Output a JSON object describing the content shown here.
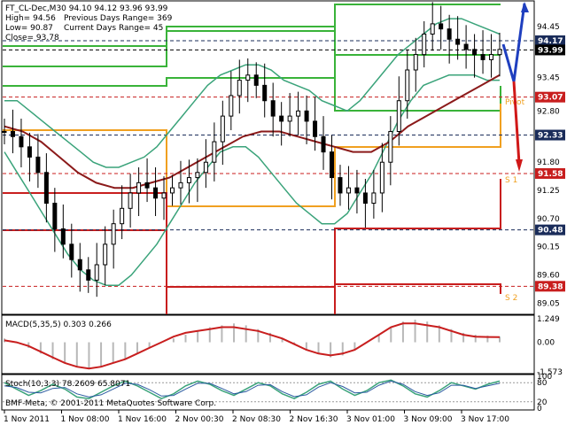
{
  "chart_data": [
    {
      "type": "candlestick",
      "info": {
        "symbol_line": "FT_CL-Dec,M30  94.10 94.12 93.96 93.99",
        "high": "High= 94.56",
        "low": "Low= 90.87",
        "close": "Close= 93.78",
        "prev_range": "Previous Days Range= 369",
        "curr_range": "Current Days Range= 45"
      },
      "ylim": [
        88.85,
        94.93
      ],
      "y_ticks": [
        94.45,
        93.45,
        92.8,
        92.35,
        91.8,
        91.25,
        90.7,
        90.15,
        89.6,
        89.05
      ],
      "price_tags": [
        {
          "label": "94.17",
          "value": 94.17,
          "color": "#1a2c5a"
        },
        {
          "label": "93.99",
          "value": 93.99,
          "color": "#000000"
        },
        {
          "label": "93.07",
          "value": 93.07,
          "color": "#c81e1e"
        },
        {
          "label": "92.33",
          "value": 92.33,
          "color": "#1a2c5a"
        },
        {
          "label": "91.58",
          "value": 91.58,
          "color": "#c81e1e"
        },
        {
          "label": "90.48",
          "value": 90.48,
          "color": "#1a2c5a"
        },
        {
          "label": "89.38",
          "value": 89.38,
          "color": "#c81e1e"
        }
      ],
      "pivot_labels": [
        "Pivot",
        "S 1",
        "S 2"
      ],
      "close_series": [
        92.4,
        92.3,
        92.1,
        91.9,
        91.6,
        91.0,
        90.5,
        90.2,
        89.9,
        89.7,
        89.5,
        89.8,
        90.2,
        90.6,
        90.9,
        91.2,
        91.4,
        91.3,
        91.1,
        91.2,
        91.3,
        91.4,
        91.5,
        91.6,
        91.8,
        92.2,
        92.7,
        93.1,
        93.4,
        93.5,
        93.3,
        93.0,
        92.7,
        92.6,
        92.7,
        92.8,
        92.6,
        92.3,
        92.0,
        91.5,
        91.2,
        91.3,
        91.2,
        91.0,
        91.2,
        91.8,
        92.4,
        93.0,
        93.6,
        93.9,
        94.3,
        94.5,
        94.4,
        94.2,
        94.1,
        94.0,
        93.9,
        93.8,
        93.9,
        94.0
      ],
      "bands_upper": [
        93.0,
        93.0,
        92.8,
        92.6,
        92.4,
        92.2,
        92.0,
        91.8,
        91.7,
        91.7,
        91.8,
        91.9,
        92.1,
        92.4,
        92.7,
        93.0,
        93.3,
        93.5,
        93.6,
        93.7,
        93.7,
        93.6,
        93.4,
        93.3,
        93.2,
        93.0,
        92.9,
        92.8,
        93.0,
        93.3,
        93.6,
        93.9,
        94.1,
        94.3,
        94.5,
        94.6,
        94.6,
        94.5,
        94.4,
        94.3
      ],
      "bands_lower": [
        92.0,
        91.6,
        91.2,
        90.8,
        90.4,
        90.0,
        89.7,
        89.5,
        89.4,
        89.4,
        89.6,
        89.9,
        90.2,
        90.6,
        91.0,
        91.4,
        91.7,
        92.0,
        92.1,
        92.1,
        91.9,
        91.6,
        91.3,
        91.0,
        90.8,
        90.6,
        90.6,
        90.8,
        91.2,
        91.6,
        92.1,
        92.6,
        93.0,
        93.3,
        93.4,
        93.5,
        93.5,
        93.5,
        93.4,
        93.4
      ],
      "ma_series": [
        92.5,
        92.4,
        92.2,
        91.9,
        91.6,
        91.4,
        91.3,
        91.3,
        91.4,
        91.5,
        91.7,
        91.9,
        92.1,
        92.3,
        92.4,
        92.4,
        92.3,
        92.2,
        92.1,
        92.0,
        92.0,
        92.2,
        92.5,
        92.7,
        92.9,
        93.1,
        93.3,
        93.5
      ],
      "x_ticks": [
        "1 Nov 2011",
        "1 Nov 08:00",
        "1 Nov 16:00",
        "2 Nov 00:30",
        "2 Nov 08:30",
        "2 Nov 16:30",
        "3 Nov 01:00",
        "3 Nov 09:00",
        "3 Nov 17:00"
      ],
      "colors": {
        "bars": "#000000",
        "bands": "#3aa37a",
        "ma": "#8b1a1a",
        "levels_green": "#39b339",
        "levels_orange": "#f0a020",
        "levels_red": "#c81e1e",
        "arrow_up": "#1f3fbf",
        "arrow_down": "#d01818"
      }
    },
    {
      "type": "bar",
      "title": "MACD(5,35,5) 0.303 0.266",
      "ylim": [
        -1.573,
        1.249
      ],
      "y_ticks": [
        "1.249",
        "0.00",
        "-1.573"
      ],
      "histogram": [
        0.2,
        0.0,
        -0.3,
        -0.6,
        -0.9,
        -1.1,
        -1.3,
        -1.4,
        -1.3,
        -1.1,
        -0.9,
        -0.6,
        -0.3,
        0.0,
        0.2,
        0.4,
        0.6,
        0.8,
        0.9,
        1.0,
        0.9,
        0.7,
        0.5,
        0.2,
        -0.1,
        -0.4,
        -0.6,
        -0.8,
        -0.7,
        -0.4,
        0.0,
        0.4,
        0.8,
        1.1,
        1.2,
        1.1,
        0.9,
        0.7,
        0.5,
        0.4,
        0.35,
        0.3
      ],
      "signal": [
        0.1,
        0.0,
        -0.2,
        -0.5,
        -0.8,
        -1.1,
        -1.3,
        -1.4,
        -1.3,
        -1.1,
        -0.9,
        -0.6,
        -0.3,
        0.0,
        0.3,
        0.5,
        0.6,
        0.7,
        0.8,
        0.8,
        0.7,
        0.6,
        0.4,
        0.2,
        -0.1,
        -0.4,
        -0.6,
        -0.7,
        -0.6,
        -0.4,
        0.0,
        0.4,
        0.8,
        1.0,
        1.0,
        0.9,
        0.8,
        0.6,
        0.4,
        0.3,
        0.28,
        0.27
      ],
      "colors": {
        "hist": "#b8b8b8",
        "signal": "#c81e1e"
      }
    },
    {
      "type": "line",
      "title": "Stoch(10,3,3) 78.2609 65.8071",
      "y_ticks": [
        "100",
        "80",
        "20",
        "0"
      ],
      "main": [
        80,
        60,
        40,
        55,
        75,
        60,
        35,
        30,
        50,
        70,
        85,
        70,
        50,
        30,
        45,
        70,
        85,
        75,
        55,
        40,
        60,
        80,
        70,
        45,
        30,
        50,
        75,
        85,
        60,
        40,
        55,
        80,
        88,
        70,
        45,
        35,
        55,
        80,
        70,
        60,
        75,
        85
      ],
      "signal": [
        70,
        65,
        50,
        48,
        62,
        65,
        45,
        35,
        42,
        60,
        78,
        75,
        58,
        38,
        40,
        60,
        78,
        78,
        62,
        45,
        52,
        72,
        74,
        52,
        36,
        42,
        66,
        80,
        68,
        48,
        50,
        72,
        85,
        75,
        52,
        40,
        48,
        72,
        72,
        62,
        70,
        78
      ],
      "colors": {
        "main": "#3aa37a",
        "signal": "#2a5aa0"
      }
    }
  ],
  "footer": {
    "copyright": "BMF-Meta, © 2001-2011 MetaQuotes Software Corp."
  }
}
